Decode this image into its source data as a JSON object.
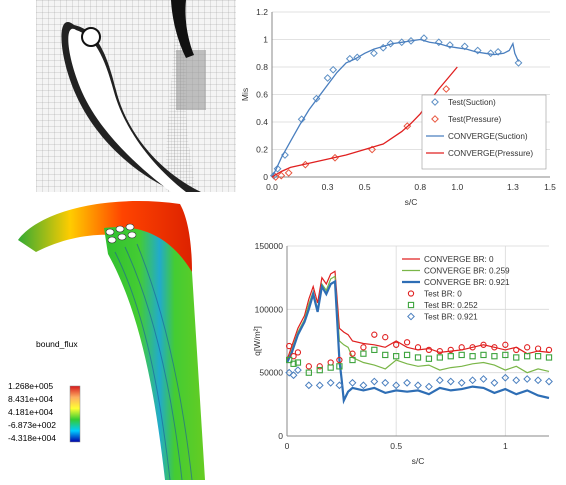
{
  "contour": {
    "variable": "bound_flux",
    "ticks": [
      "1.268e+005",
      "8.431e+004",
      "4.181e+004",
      "-6.873e+002",
      "-4.318e+004"
    ],
    "colors": [
      "#d7191c",
      "#fdae61",
      "#ffff33",
      "#33cc33",
      "#00ccff",
      "#0000aa"
    ]
  },
  "chart_data": [
    {
      "type": "scatter",
      "xlabel": "s/C",
      "ylabel": "Mis",
      "xlim": [
        0,
        1.5
      ],
      "ylim": [
        0,
        1.2
      ],
      "xticks": [
        "0.0",
        "0.3",
        "0.5",
        "0.8",
        "1.0",
        "1.3",
        "1.5"
      ],
      "xtick_values": [
        0,
        0.3,
        0.5,
        0.8,
        1.0,
        1.3,
        1.5
      ],
      "yticks": [
        "0",
        "0.2",
        "0.4",
        "0.6",
        "0.8",
        "1",
        "1.2"
      ],
      "ytick_values": [
        0,
        0.2,
        0.4,
        0.6,
        0.8,
        1.0,
        1.2
      ],
      "legend_position": "bottom-right",
      "series": [
        {
          "name": "Test(Suction)",
          "kind": "markers",
          "marker": "diamond",
          "color": "#5b8ec4",
          "x": [
            0.01,
            0.03,
            0.07,
            0.16,
            0.24,
            0.3,
            0.33,
            0.42,
            0.46,
            0.55,
            0.6,
            0.64,
            0.7,
            0.75,
            0.82,
            0.9,
            0.96,
            1.04,
            1.11,
            1.18,
            1.22,
            1.33
          ],
          "y": [
            0.01,
            0.06,
            0.16,
            0.42,
            0.57,
            0.72,
            0.78,
            0.86,
            0.87,
            0.9,
            0.94,
            0.97,
            0.98,
            0.99,
            1.01,
            0.98,
            0.96,
            0.95,
            0.92,
            0.9,
            0.91,
            0.83
          ]
        },
        {
          "name": "Test(Pressure)",
          "kind": "markers",
          "marker": "diamond",
          "color": "#e8553e",
          "x": [
            0.02,
            0.05,
            0.09,
            0.18,
            0.34,
            0.54,
            0.73,
            0.94
          ],
          "y": [
            0.0,
            0.01,
            0.03,
            0.09,
            0.14,
            0.2,
            0.37,
            0.64
          ]
        },
        {
          "name": "CONVERGE(Suction)",
          "kind": "line",
          "color": "#4a7fbf",
          "x": [
            0,
            0.02,
            0.05,
            0.1,
            0.15,
            0.2,
            0.25,
            0.3,
            0.35,
            0.4,
            0.45,
            0.5,
            0.55,
            0.6,
            0.65,
            0.7,
            0.75,
            0.8,
            0.85,
            0.9,
            0.95,
            1.0,
            1.05,
            1.1,
            1.15,
            1.2,
            1.25,
            1.28,
            1.3,
            1.31,
            1.33
          ],
          "y": [
            0,
            0.05,
            0.14,
            0.26,
            0.38,
            0.49,
            0.58,
            0.67,
            0.76,
            0.83,
            0.86,
            0.9,
            0.93,
            0.95,
            0.97,
            0.98,
            0.99,
            1.0,
            0.98,
            0.97,
            0.95,
            0.94,
            0.93,
            0.91,
            0.9,
            0.89,
            0.9,
            0.92,
            0.97,
            0.9,
            0.84
          ]
        },
        {
          "name": "CONVERGE(Pressure)",
          "kind": "line",
          "color": "#e02020",
          "x": [
            0,
            0.05,
            0.1,
            0.2,
            0.3,
            0.4,
            0.5,
            0.6,
            0.7,
            0.75,
            0.8,
            0.85,
            0.9,
            0.95,
            1.0
          ],
          "y": [
            0,
            0.04,
            0.07,
            0.1,
            0.13,
            0.16,
            0.2,
            0.24,
            0.33,
            0.39,
            0.46,
            0.55,
            0.64,
            0.72,
            0.8
          ]
        }
      ]
    },
    {
      "type": "scatter",
      "xlabel": "s/C",
      "ylabel": "q[W/m²]",
      "xlim": [
        0,
        1.2
      ],
      "ylim": [
        0,
        150000
      ],
      "xticks": [
        "0",
        "0.5",
        "1"
      ],
      "xtick_values": [
        0,
        0.5,
        1.0
      ],
      "yticks": [
        "0",
        "50000",
        "100000",
        "150000"
      ],
      "ytick_values": [
        0,
        50000,
        100000,
        150000
      ],
      "legend_position": "top-right",
      "series": [
        {
          "name": "CONVERGE BR: 0",
          "kind": "line",
          "color": "#e02020",
          "x": [
            0,
            0.02,
            0.05,
            0.08,
            0.1,
            0.12,
            0.14,
            0.16,
            0.18,
            0.2,
            0.22,
            0.24,
            0.26,
            0.28,
            0.3,
            0.35,
            0.4,
            0.45,
            0.5,
            0.55,
            0.6,
            0.65,
            0.7,
            0.75,
            0.8,
            0.85,
            0.9,
            0.95,
            1.0,
            1.05,
            1.1,
            1.15,
            1.2
          ],
          "y": [
            60000,
            70000,
            85000,
            95000,
            108000,
            118000,
            105000,
            125000,
            120000,
            128000,
            130000,
            85000,
            82000,
            80000,
            75000,
            73000,
            72000,
            70000,
            75000,
            70000,
            68000,
            69000,
            66000,
            67000,
            68000,
            70000,
            72000,
            70000,
            68000,
            70000,
            65000,
            67000,
            66000
          ]
        },
        {
          "name": "CONVERGE BR: 0.259",
          "kind": "line",
          "color": "#7ab648",
          "x": [
            0,
            0.02,
            0.05,
            0.08,
            0.1,
            0.12,
            0.14,
            0.16,
            0.18,
            0.2,
            0.22,
            0.24,
            0.26,
            0.28,
            0.3,
            0.35,
            0.4,
            0.45,
            0.5,
            0.55,
            0.6,
            0.65,
            0.7,
            0.75,
            0.8,
            0.85,
            0.9,
            0.95,
            1.0,
            1.05,
            1.1,
            1.15,
            1.2
          ],
          "y": [
            58000,
            67000,
            82000,
            92000,
            104000,
            114000,
            100000,
            120000,
            115000,
            124000,
            126000,
            75000,
            72000,
            70000,
            62000,
            58000,
            56000,
            53000,
            60000,
            57000,
            55000,
            56000,
            52000,
            54000,
            55000,
            57000,
            58000,
            56000,
            52000,
            55000,
            50000,
            53000,
            51000
          ]
        },
        {
          "name": "CONVERGE BR: 0.921",
          "kind": "line",
          "color": "#2e6eb5",
          "x": [
            0,
            0.02,
            0.05,
            0.08,
            0.1,
            0.12,
            0.14,
            0.16,
            0.18,
            0.2,
            0.22,
            0.24,
            0.25,
            0.26,
            0.28,
            0.3,
            0.35,
            0.4,
            0.45,
            0.5,
            0.55,
            0.6,
            0.65,
            0.7,
            0.75,
            0.8,
            0.85,
            0.9,
            0.95,
            1.0,
            1.05,
            1.1,
            1.15,
            1.2
          ],
          "y": [
            58000,
            65000,
            80000,
            90000,
            100000,
            112000,
            98000,
            118000,
            112000,
            120000,
            122000,
            60000,
            45000,
            28000,
            35000,
            38000,
            36000,
            38000,
            34000,
            36000,
            35000,
            36000,
            33000,
            38000,
            36000,
            37000,
            39000,
            38000,
            34000,
            37000,
            33000,
            36000,
            32000,
            30000
          ]
        },
        {
          "name": "Test BR: 0",
          "kind": "markers",
          "marker": "circle",
          "color": "#e02020",
          "x": [
            0.01,
            0.03,
            0.05,
            0.1,
            0.15,
            0.2,
            0.24,
            0.3,
            0.35,
            0.4,
            0.45,
            0.5,
            0.55,
            0.6,
            0.65,
            0.7,
            0.75,
            0.8,
            0.85,
            0.9,
            0.95,
            1.0,
            1.05,
            1.1,
            1.15,
            1.2
          ],
          "y": [
            71000,
            63000,
            66000,
            55000,
            55000,
            58000,
            60000,
            65000,
            70000,
            80000,
            78000,
            72000,
            74000,
            70000,
            68000,
            67000,
            68000,
            70000,
            70000,
            72000,
            70000,
            72000,
            68000,
            70000,
            69000,
            68000
          ]
        },
        {
          "name": "Test BR: 0.252",
          "kind": "markers",
          "marker": "square",
          "color": "#3da33d",
          "x": [
            0.01,
            0.03,
            0.05,
            0.1,
            0.15,
            0.2,
            0.24,
            0.3,
            0.35,
            0.4,
            0.45,
            0.5,
            0.55,
            0.6,
            0.65,
            0.7,
            0.75,
            0.8,
            0.85,
            0.9,
            0.95,
            1.0,
            1.05,
            1.1,
            1.15,
            1.2
          ],
          "y": [
            60000,
            57000,
            58000,
            50000,
            52000,
            54000,
            55000,
            60000,
            65000,
            68000,
            64000,
            63000,
            64000,
            62000,
            61000,
            62000,
            63000,
            64000,
            63000,
            64000,
            63000,
            64000,
            62000,
            63000,
            63000,
            62000
          ]
        },
        {
          "name": "Test BR: 0.921",
          "kind": "markers",
          "marker": "diamond",
          "color": "#4a7fbf",
          "x": [
            0.01,
            0.03,
            0.05,
            0.1,
            0.15,
            0.2,
            0.24,
            0.3,
            0.35,
            0.4,
            0.45,
            0.5,
            0.55,
            0.6,
            0.65,
            0.7,
            0.75,
            0.8,
            0.85,
            0.9,
            0.95,
            1.0,
            1.05,
            1.1,
            1.15,
            1.2
          ],
          "y": [
            50000,
            48000,
            52000,
            40000,
            40000,
            42000,
            40000,
            42000,
            40000,
            43000,
            42000,
            40000,
            42000,
            40000,
            39000,
            44000,
            43000,
            42000,
            44000,
            45000,
            42000,
            46000,
            44000,
            45000,
            44000,
            43000
          ]
        }
      ]
    }
  ]
}
